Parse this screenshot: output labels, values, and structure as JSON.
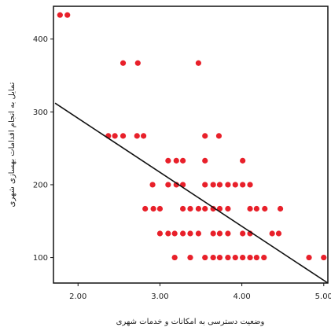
{
  "chart_data": {
    "type": "scatter",
    "title": "",
    "xlabel": "وضعیت دسترسی به امکانات و خدمات شهری",
    "ylabel": "تمایل به انجام اقدامات بهسازی شهری",
    "xlim": [
      1.7,
      5.05
    ],
    "ylim": [
      65,
      445
    ],
    "xticks": [
      2.0,
      3.0,
      4.0,
      5.0
    ],
    "xtick_labels": [
      "2.00",
      "3.00",
      "4.00",
      "5.00"
    ],
    "yticks": [
      100,
      200,
      300,
      400
    ],
    "ytick_labels": [
      "100",
      "200",
      "300",
      "400"
    ],
    "grid": false,
    "legend": "none",
    "colors": {
      "points": "#e8202a",
      "fit_line": "#111111",
      "axes": "#111111"
    },
    "series": [
      {
        "points": [
          [
            1.78,
            433
          ],
          [
            1.87,
            433
          ],
          [
            2.55,
            367
          ],
          [
            2.73,
            367
          ],
          [
            3.47,
            367
          ],
          [
            2.37,
            267
          ],
          [
            2.45,
            267
          ],
          [
            2.55,
            267
          ],
          [
            2.72,
            267
          ],
          [
            2.8,
            267
          ],
          [
            3.55,
            267
          ],
          [
            3.72,
            267
          ],
          [
            3.1,
            233
          ],
          [
            3.2,
            233
          ],
          [
            3.28,
            233
          ],
          [
            3.55,
            233
          ],
          [
            4.01,
            233
          ],
          [
            2.91,
            200
          ],
          [
            3.1,
            200
          ],
          [
            3.2,
            200
          ],
          [
            3.28,
            200
          ],
          [
            3.55,
            200
          ],
          [
            3.65,
            200
          ],
          [
            3.73,
            200
          ],
          [
            3.83,
            200
          ],
          [
            3.92,
            200
          ],
          [
            4.01,
            200
          ],
          [
            4.1,
            200
          ],
          [
            2.82,
            167
          ],
          [
            2.92,
            167
          ],
          [
            3.0,
            167
          ],
          [
            3.28,
            167
          ],
          [
            3.37,
            167
          ],
          [
            3.47,
            167
          ],
          [
            3.55,
            167
          ],
          [
            3.65,
            167
          ],
          [
            3.73,
            167
          ],
          [
            3.83,
            167
          ],
          [
            4.1,
            167
          ],
          [
            4.18,
            167
          ],
          [
            4.28,
            167
          ],
          [
            4.47,
            167
          ],
          [
            3.0,
            133
          ],
          [
            3.1,
            133
          ],
          [
            3.18,
            133
          ],
          [
            3.28,
            133
          ],
          [
            3.37,
            133
          ],
          [
            3.47,
            133
          ],
          [
            3.65,
            133
          ],
          [
            3.73,
            133
          ],
          [
            3.83,
            133
          ],
          [
            4.01,
            133
          ],
          [
            4.1,
            133
          ],
          [
            4.37,
            133
          ],
          [
            4.45,
            133
          ],
          [
            3.18,
            100
          ],
          [
            3.37,
            100
          ],
          [
            3.55,
            100
          ],
          [
            3.65,
            100
          ],
          [
            3.73,
            100
          ],
          [
            3.83,
            100
          ],
          [
            3.92,
            100
          ],
          [
            4.01,
            100
          ],
          [
            4.1,
            100
          ],
          [
            4.18,
            100
          ],
          [
            4.27,
            100
          ],
          [
            4.82,
            100
          ],
          [
            5.0,
            100
          ]
        ]
      }
    ],
    "fit_line": {
      "x": [
        1.72,
        5.05
      ],
      "y": [
        312,
        65
      ]
    }
  }
}
